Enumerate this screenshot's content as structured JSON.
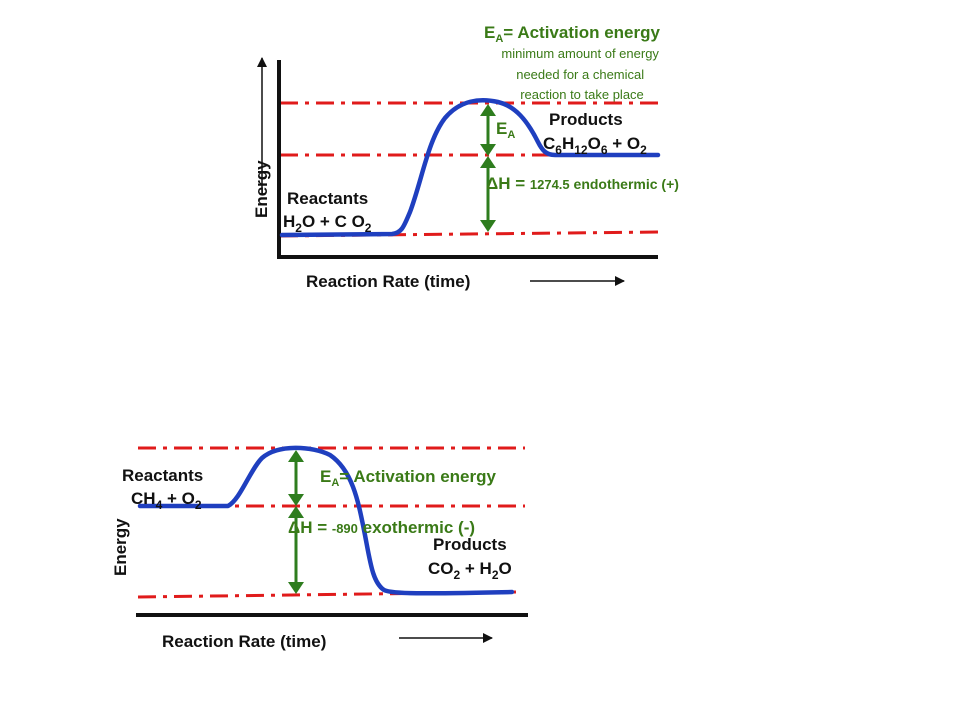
{
  "diagram_top": {
    "ea_title_main": "E",
    "ea_title_sub": "A",
    "ea_title_rest": "= Activation energy",
    "ea_definition": [
      "minimum amount of energy",
      "needed for a chemical",
      "reaction to take place"
    ],
    "ea_marker_main": "E",
    "ea_marker_sub": "A",
    "products_label": "Products",
    "products_formula": [
      {
        "t": "C",
        "sub": false
      },
      {
        "t": "6",
        "sub": true
      },
      {
        "t": "H",
        "sub": false
      },
      {
        "t": "12",
        "sub": true
      },
      {
        "t": "O",
        "sub": false
      },
      {
        "t": "6",
        "sub": true
      },
      {
        "t": " + O",
        "sub": false
      },
      {
        "t": "2",
        "sub": true
      }
    ],
    "delta_h_prefix": "ΔH = ",
    "delta_h_value": "1274.5",
    "delta_h_suffix": " endothermic  (+)",
    "reactants_label": "Reactants",
    "reactants_formula": [
      {
        "t": "H",
        "sub": false
      },
      {
        "t": "2",
        "sub": true
      },
      {
        "t": "O + C O",
        "sub": false
      },
      {
        "t": "2",
        "sub": true
      }
    ],
    "y_axis_label": "Energy",
    "x_axis_label": "Reaction Rate (time)"
  },
  "diagram_bottom": {
    "ea_title_main": "E",
    "ea_title_sub": "A",
    "ea_title_rest": "= Activation energy",
    "reactants_label": "Reactants",
    "reactants_formula": [
      {
        "t": "CH",
        "sub": false
      },
      {
        "t": "4",
        "sub": true
      },
      {
        "t": " + O",
        "sub": false
      },
      {
        "t": "2",
        "sub": true
      }
    ],
    "delta_h_prefix": "ΔH = ",
    "delta_h_value": "-890",
    "delta_h_suffix": " exothermic (-)",
    "products_label": "Products",
    "products_formula": [
      {
        "t": "CO",
        "sub": false
      },
      {
        "t": "2",
        "sub": true
      },
      {
        "t": " + H",
        "sub": false
      },
      {
        "t": "2",
        "sub": true
      },
      {
        "t": "O",
        "sub": false
      }
    ],
    "y_axis_label": "Energy",
    "x_axis_label": "Reaction Rate (time)"
  },
  "colors": {
    "curve": "#1f3fbf",
    "dashed": "#e01b1b",
    "arrow": "#2e7d1e",
    "text_green": "#3a7a17",
    "axis": "#111111"
  }
}
